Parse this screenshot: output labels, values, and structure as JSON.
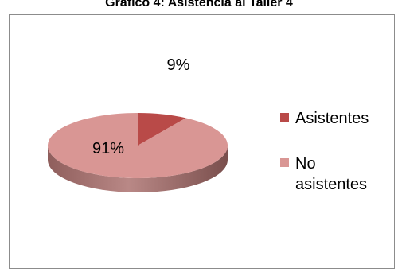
{
  "chart_data": {
    "type": "pie",
    "title": "Gráfico 4: Asistencia al Taller 4",
    "categories": [
      "Asistentes",
      "No asistentes"
    ],
    "values": [
      9,
      91
    ],
    "value_labels": [
      "9%",
      "91%"
    ],
    "colors": [
      "#b94a48",
      "#d99694"
    ],
    "legend_position": "right",
    "style": "3d"
  }
}
